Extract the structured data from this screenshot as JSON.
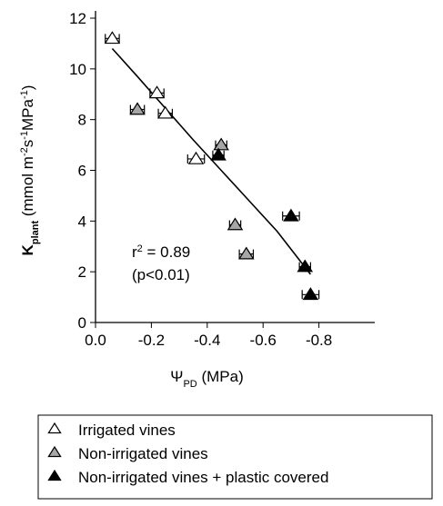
{
  "chart_data": {
    "type": "scatter",
    "xlabel": [
      {
        "text": "Ψ",
        "shift": "base"
      },
      {
        "text": "PD",
        "shift": "sub"
      },
      {
        "text": " (MPa)",
        "shift": "base"
      }
    ],
    "ylabel": [
      {
        "text": "K",
        "shift": "base"
      },
      {
        "text": "plant",
        "shift": "sub"
      },
      {
        "text": " (mmol m",
        "shift": "base"
      },
      {
        "text": "-2",
        "shift": "super"
      },
      {
        "text": "s",
        "shift": "base"
      },
      {
        "text": "-1",
        "shift": "super"
      },
      {
        "text": "MPa",
        "shift": "base"
      },
      {
        "text": "-1",
        "shift": "super"
      },
      {
        "text": ")",
        "shift": "base"
      }
    ],
    "xlim": [
      0,
      -1.0
    ],
    "xticks": [
      {
        "value": 0,
        "label": "0.0"
      },
      -0.2,
      -0.4,
      -0.6,
      -0.8
    ],
    "ylim": [
      0,
      12
    ],
    "yticks": [
      0,
      2,
      4,
      6,
      8,
      10,
      12
    ],
    "series": [
      {
        "name": "Irrigated vines",
        "color": "#000000",
        "marker_fill": "#ffffff",
        "x": [
          -0.06,
          -0.22,
          -0.25,
          -0.36
        ],
        "values": [
          11.2,
          9.05,
          8.25,
          6.45
        ],
        "xerr": [
          0.025,
          0.025,
          0.025,
          0.03
        ]
      },
      {
        "name": "Non-irrigated vines",
        "color": "#000000",
        "marker_fill": "#a6a6a6",
        "x": [
          -0.15,
          -0.45,
          -0.5,
          -0.54
        ],
        "values": [
          8.4,
          7.0,
          3.85,
          2.7
        ],
        "xerr": [
          0.025,
          0.02,
          0.02,
          0.025
        ]
      },
      {
        "name": "Non-irrigated vines + plastic covered",
        "color": "#000000",
        "marker_fill": "#000000",
        "x": [
          -0.44,
          -0.7,
          -0.75,
          -0.77
        ],
        "values": [
          6.6,
          4.2,
          2.2,
          1.1
        ],
        "xerr": [
          0.02,
          0.03,
          0.02,
          0.03
        ]
      }
    ],
    "fit": {
      "color": "#000000",
      "x": [
        -0.06,
        -0.15,
        -0.25,
        -0.35,
        -0.45,
        -0.55,
        -0.65,
        -0.77
      ],
      "values": [
        10.8,
        9.7,
        8.45,
        7.2,
        6.0,
        4.8,
        3.6,
        1.9
      ]
    },
    "annotation": [
      {
        "text": "r",
        "shift": "base"
      },
      {
        "text": "2",
        "shift": "super"
      },
      {
        "text": " = 0.89",
        "shift": "base"
      }
    ],
    "annotation2": "(p<0.01)",
    "legend": "below"
  }
}
